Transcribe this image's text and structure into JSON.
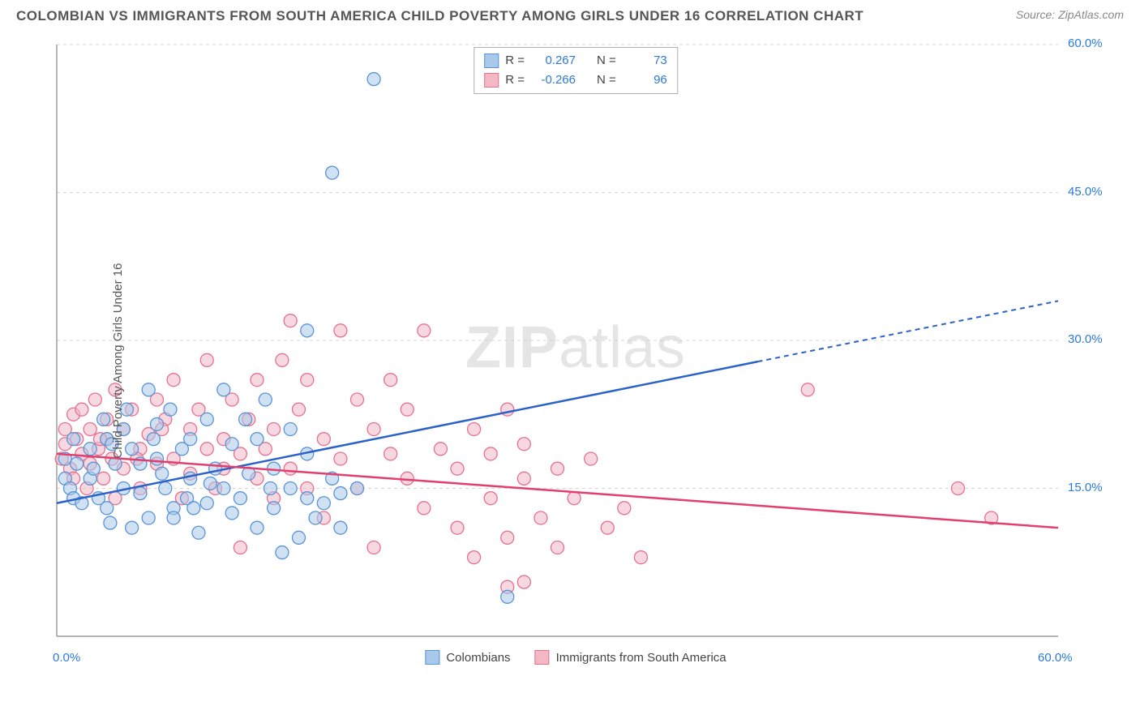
{
  "title": "COLOMBIAN VS IMMIGRANTS FROM SOUTH AMERICA CHILD POVERTY AMONG GIRLS UNDER 16 CORRELATION CHART",
  "source": "Source: ZipAtlas.com",
  "ylabel": "Child Poverty Among Girls Under 16",
  "watermark_a": "ZIP",
  "watermark_b": "atlas",
  "chart": {
    "type": "scatter",
    "background_color": "#ffffff",
    "grid_color": "#d8d8d8",
    "axis_line_color": "#888888",
    "tick_color": "#2b7bd6",
    "xlim": [
      0,
      60
    ],
    "ylim": [
      0,
      60
    ],
    "xtick_labels": [
      "0.0%",
      "60.0%"
    ],
    "ytick_labels": [
      "15.0%",
      "30.0%",
      "45.0%",
      "60.0%"
    ],
    "ytick_vals": [
      15,
      30,
      45,
      60
    ],
    "series": [
      {
        "label": "Colombians",
        "fill": "#a9c9ea",
        "stroke": "#5a94d6",
        "fill_opacity": 0.55,
        "line_color": "#2b62c9",
        "R": "0.267",
        "N": "73",
        "marker_r": 8,
        "trend": {
          "x1": 0,
          "y1": 13.5,
          "x2": 60,
          "y2": 34.0,
          "dashed_from_x": 42
        },
        "points": [
          [
            0.5,
            16
          ],
          [
            0.5,
            18
          ],
          [
            0.8,
            15
          ],
          [
            1,
            20
          ],
          [
            1,
            14
          ],
          [
            1.2,
            17.5
          ],
          [
            1.5,
            13.5
          ],
          [
            2,
            19
          ],
          [
            2,
            16
          ],
          [
            2.2,
            17
          ],
          [
            2.5,
            14
          ],
          [
            3,
            20
          ],
          [
            3,
            13
          ],
          [
            3.2,
            11.5
          ],
          [
            3.5,
            17.5
          ],
          [
            4,
            21
          ],
          [
            4,
            15
          ],
          [
            4.5,
            19
          ],
          [
            4.5,
            11
          ],
          [
            5,
            14.5
          ],
          [
            5,
            17.5
          ],
          [
            5.5,
            25
          ],
          [
            5.5,
            12
          ],
          [
            6,
            18
          ],
          [
            6,
            21.5
          ],
          [
            6.5,
            15
          ],
          [
            7,
            13
          ],
          [
            7,
            12
          ],
          [
            7.5,
            19
          ],
          [
            8,
            16
          ],
          [
            8,
            20
          ],
          [
            8.5,
            10.5
          ],
          [
            9,
            22
          ],
          [
            9,
            13.5
          ],
          [
            9.5,
            17
          ],
          [
            10,
            15
          ],
          [
            10,
            25
          ],
          [
            10.5,
            12.5
          ],
          [
            10.5,
            19.5
          ],
          [
            11,
            14
          ],
          [
            11.5,
            16.5
          ],
          [
            12,
            20
          ],
          [
            12,
            11
          ],
          [
            12.5,
            24
          ],
          [
            13,
            13
          ],
          [
            13,
            17
          ],
          [
            13.5,
            8.5
          ],
          [
            14,
            15
          ],
          [
            14,
            21
          ],
          [
            14.5,
            10
          ],
          [
            15,
            14
          ],
          [
            15,
            18.5
          ],
          [
            15,
            31
          ],
          [
            15.5,
            12
          ],
          [
            16,
            13.5
          ],
          [
            16.5,
            16
          ],
          [
            17,
            14.5
          ],
          [
            17,
            11
          ],
          [
            18,
            15
          ],
          [
            16.5,
            47
          ],
          [
            19,
            56.5
          ],
          [
            27,
            4
          ],
          [
            2.8,
            22
          ],
          [
            3.3,
            19.5
          ],
          [
            4.2,
            23
          ],
          [
            6.8,
            23
          ],
          [
            7.8,
            14
          ],
          [
            9.2,
            15.5
          ],
          [
            11.3,
            22
          ],
          [
            12.8,
            15
          ],
          [
            8.2,
            13
          ],
          [
            5.8,
            20
          ],
          [
            6.3,
            16.5
          ]
        ]
      },
      {
        "label": "Immigrants from South America",
        "fill": "#f2b8c6",
        "stroke": "#e6718f",
        "fill_opacity": 0.55,
        "line_color": "#e23e6e",
        "R": "-0.266",
        "N": "96",
        "marker_r": 8,
        "trend": {
          "x1": 0,
          "y1": 18.5,
          "x2": 60,
          "y2": 11.0,
          "dashed_from_x": 60
        },
        "points": [
          [
            0.3,
            18
          ],
          [
            0.5,
            19.5
          ],
          [
            0.5,
            21
          ],
          [
            0.8,
            17
          ],
          [
            1,
            22.5
          ],
          [
            1,
            16
          ],
          [
            1.2,
            20
          ],
          [
            1.5,
            18.5
          ],
          [
            1.5,
            23
          ],
          [
            1.8,
            15
          ],
          [
            2,
            21
          ],
          [
            2,
            17.5
          ],
          [
            2.3,
            24
          ],
          [
            2.5,
            19
          ],
          [
            2.8,
            16
          ],
          [
            3,
            22
          ],
          [
            3,
            20
          ],
          [
            3.3,
            18
          ],
          [
            3.5,
            25
          ],
          [
            3.5,
            14
          ],
          [
            4,
            21
          ],
          [
            4,
            17
          ],
          [
            4.5,
            23
          ],
          [
            5,
            19
          ],
          [
            5,
            15
          ],
          [
            5.5,
            20.5
          ],
          [
            6,
            17.5
          ],
          [
            6,
            24
          ],
          [
            6.5,
            22
          ],
          [
            7,
            18
          ],
          [
            7,
            26
          ],
          [
            7.5,
            14
          ],
          [
            8,
            21
          ],
          [
            8,
            16.5
          ],
          [
            8.5,
            23
          ],
          [
            9,
            19
          ],
          [
            9,
            28
          ],
          [
            9.5,
            15
          ],
          [
            10,
            20
          ],
          [
            10,
            17
          ],
          [
            10.5,
            24
          ],
          [
            11,
            18.5
          ],
          [
            11,
            9
          ],
          [
            11.5,
            22
          ],
          [
            12,
            16
          ],
          [
            12,
            26
          ],
          [
            12.5,
            19
          ],
          [
            13,
            21
          ],
          [
            13,
            14
          ],
          [
            13.5,
            28
          ],
          [
            14,
            17
          ],
          [
            14,
            32
          ],
          [
            14.5,
            23
          ],
          [
            15,
            15
          ],
          [
            15,
            26
          ],
          [
            16,
            20
          ],
          [
            16,
            12
          ],
          [
            17,
            31
          ],
          [
            17,
            18
          ],
          [
            18,
            24
          ],
          [
            18,
            15
          ],
          [
            19,
            21
          ],
          [
            19,
            9
          ],
          [
            20,
            18.5
          ],
          [
            20,
            26
          ],
          [
            21,
            16
          ],
          [
            21,
            23
          ],
          [
            22,
            13
          ],
          [
            22,
            31
          ],
          [
            23,
            19
          ],
          [
            24,
            17
          ],
          [
            24,
            11
          ],
          [
            25,
            21
          ],
          [
            25,
            8
          ],
          [
            26,
            18.5
          ],
          [
            26,
            14
          ],
          [
            27,
            23
          ],
          [
            27,
            10
          ],
          [
            28,
            16
          ],
          [
            28,
            19.5
          ],
          [
            29,
            12
          ],
          [
            30,
            17
          ],
          [
            30,
            9
          ],
          [
            31,
            14
          ],
          [
            32,
            18
          ],
          [
            33,
            11
          ],
          [
            34,
            13
          ],
          [
            35,
            8
          ],
          [
            27,
            5
          ],
          [
            28,
            5.5
          ],
          [
            45,
            25
          ],
          [
            54,
            15
          ],
          [
            56,
            12
          ],
          [
            2.6,
            20
          ],
          [
            4.8,
            18
          ],
          [
            6.3,
            21
          ]
        ]
      }
    ]
  },
  "stats_labels": {
    "R": "R =",
    "N": "N ="
  },
  "legend": {
    "s1": "Colombians",
    "s2": "Immigrants from South America"
  }
}
